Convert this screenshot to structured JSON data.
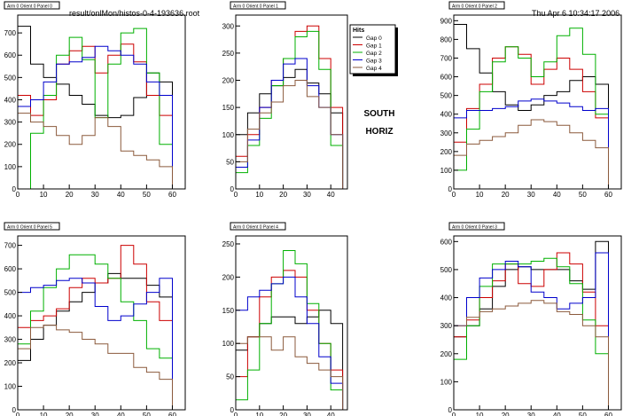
{
  "header": {
    "file": "result/onlMon/histos-0-4-193636.root",
    "datetime": "Thu Apr  6 10:34:17 2006"
  },
  "side_text": [
    "SOUTH",
    "HORIZ"
  ],
  "legend": {
    "title": "Hits",
    "entries": [
      "Gap 0",
      "Gap 1",
      "Gap 2",
      "Gap 3",
      "Gap 4"
    ]
  },
  "colors": {
    "Gap 0": "#000000",
    "Gap 1": "#cc0000",
    "Gap 2": "#00b000",
    "Gap 3": "#0000cc",
    "Gap 4": "#8b5a3c"
  },
  "chart_data": [
    {
      "type": "line",
      "title": "Arm 0 Orient 0 Panel 0",
      "xlim": [
        0,
        65
      ],
      "ylim": [
        0,
        780
      ],
      "xticks": [
        0,
        10,
        20,
        30,
        40,
        50,
        60
      ],
      "yticks": [
        0,
        100,
        200,
        300,
        400,
        500,
        600,
        700
      ],
      "x": [
        0,
        5,
        10,
        15,
        20,
        25,
        30,
        35,
        40,
        45,
        50,
        55,
        60
      ],
      "series": [
        {
          "name": "Gap 0",
          "values": [
            730,
            560,
            500,
            470,
            420,
            380,
            330,
            320,
            330,
            410,
            520,
            480,
            0
          ]
        },
        {
          "name": "Gap 1",
          "values": [
            420,
            330,
            400,
            560,
            620,
            640,
            520,
            600,
            650,
            570,
            420,
            330,
            0
          ]
        },
        {
          "name": "Gap 2",
          "values": [
            0,
            250,
            420,
            600,
            680,
            580,
            320,
            560,
            700,
            720,
            520,
            200,
            0
          ]
        },
        {
          "name": "Gap 3",
          "values": [
            370,
            400,
            480,
            560,
            570,
            590,
            640,
            620,
            600,
            560,
            480,
            420,
            0
          ]
        },
        {
          "name": "Gap 4",
          "values": [
            340,
            300,
            280,
            240,
            200,
            240,
            320,
            280,
            170,
            150,
            130,
            100,
            0
          ]
        }
      ]
    },
    {
      "type": "line",
      "title": "Arm 0 Orient 0 Panel 1",
      "xlim": [
        0,
        47
      ],
      "ylim": [
        0,
        320
      ],
      "xticks": [
        0,
        10,
        20,
        30,
        40
      ],
      "yticks": [
        0,
        50,
        100,
        150,
        200,
        250,
        300
      ],
      "x": [
        0,
        5,
        10,
        15,
        20,
        25,
        30,
        35,
        40,
        45
      ],
      "series": [
        {
          "name": "Gap 0",
          "values": [
            100,
            140,
            175,
            190,
            205,
            220,
            195,
            175,
            140,
            0
          ]
        },
        {
          "name": "Gap 1",
          "values": [
            60,
            100,
            150,
            200,
            240,
            290,
            300,
            240,
            150,
            0
          ]
        },
        {
          "name": "Gap 2",
          "values": [
            30,
            80,
            130,
            190,
            240,
            280,
            290,
            220,
            80,
            0
          ]
        },
        {
          "name": "Gap 3",
          "values": [
            40,
            90,
            150,
            200,
            230,
            240,
            190,
            150,
            100,
            0
          ]
        },
        {
          "name": "Gap 4",
          "values": [
            50,
            110,
            140,
            160,
            190,
            200,
            170,
            150,
            100,
            0
          ]
        }
      ]
    },
    {
      "type": "line",
      "title": "Arm 0 Orient 0 Panel 2",
      "xlim": [
        0,
        65
      ],
      "ylim": [
        0,
        930
      ],
      "xticks": [
        0,
        10,
        20,
        30,
        40,
        50,
        60
      ],
      "yticks": [
        0,
        100,
        200,
        300,
        400,
        500,
        600,
        700,
        800,
        900
      ],
      "x": [
        0,
        5,
        10,
        15,
        20,
        25,
        30,
        35,
        40,
        45,
        50,
        55,
        60
      ],
      "series": [
        {
          "name": "Gap 0",
          "values": [
            880,
            750,
            620,
            520,
            450,
            420,
            450,
            500,
            520,
            580,
            600,
            560,
            0
          ]
        },
        {
          "name": "Gap 1",
          "values": [
            250,
            430,
            560,
            700,
            760,
            720,
            560,
            640,
            700,
            640,
            520,
            380,
            0
          ]
        },
        {
          "name": "Gap 2",
          "values": [
            100,
            320,
            520,
            680,
            760,
            700,
            600,
            680,
            820,
            860,
            720,
            400,
            0
          ]
        },
        {
          "name": "Gap 3",
          "values": [
            380,
            420,
            420,
            430,
            440,
            470,
            480,
            470,
            460,
            440,
            420,
            430,
            0
          ]
        },
        {
          "name": "Gap 4",
          "values": [
            180,
            240,
            260,
            280,
            300,
            340,
            370,
            360,
            340,
            300,
            260,
            220,
            0
          ]
        }
      ]
    },
    {
      "type": "line",
      "title": "Arm 0 Orient 0 Panel 5",
      "xlim": [
        0,
        65
      ],
      "ylim": [
        0,
        740
      ],
      "xticks": [
        0,
        10,
        20,
        30,
        40,
        50,
        60
      ],
      "yticks": [
        0,
        100,
        200,
        300,
        400,
        500,
        600,
        700
      ],
      "x": [
        0,
        5,
        10,
        15,
        20,
        25,
        30,
        35,
        40,
        45,
        50,
        55,
        60
      ],
      "series": [
        {
          "name": "Gap 0",
          "values": [
            210,
            300,
            360,
            420,
            460,
            500,
            540,
            580,
            560,
            560,
            530,
            480,
            0
          ]
        },
        {
          "name": "Gap 1",
          "values": [
            350,
            380,
            400,
            430,
            520,
            560,
            540,
            560,
            700,
            620,
            460,
            380,
            0
          ]
        },
        {
          "name": "Gap 2",
          "values": [
            280,
            420,
            520,
            600,
            660,
            660,
            620,
            560,
            460,
            380,
            260,
            220,
            0
          ]
        },
        {
          "name": "Gap 3",
          "values": [
            500,
            520,
            530,
            550,
            560,
            540,
            440,
            380,
            400,
            450,
            500,
            560,
            0
          ]
        },
        {
          "name": "Gap 4",
          "values": [
            260,
            350,
            360,
            340,
            330,
            300,
            280,
            240,
            240,
            180,
            160,
            130,
            0
          ]
        }
      ]
    },
    {
      "type": "line",
      "title": "Arm 0 Orient 0 Panel 4",
      "xlim": [
        0,
        47
      ],
      "ylim": [
        0,
        262
      ],
      "xticks": [
        0,
        10,
        20,
        30,
        40
      ],
      "yticks": [
        0,
        50,
        100,
        150,
        200,
        250
      ],
      "x": [
        0,
        5,
        10,
        15,
        20,
        25,
        30,
        35,
        40,
        45
      ],
      "series": [
        {
          "name": "Gap 0",
          "values": [
            90,
            110,
            130,
            140,
            140,
            130,
            140,
            150,
            130,
            0
          ]
        },
        {
          "name": "Gap 1",
          "values": [
            50,
            110,
            170,
            200,
            210,
            200,
            150,
            100,
            60,
            0
          ]
        },
        {
          "name": "Gap 2",
          "values": [
            15,
            60,
            130,
            190,
            240,
            220,
            160,
            100,
            30,
            0
          ]
        },
        {
          "name": "Gap 3",
          "values": [
            150,
            170,
            180,
            190,
            200,
            170,
            130,
            80,
            40,
            0
          ]
        },
        {
          "name": "Gap 4",
          "values": [
            100,
            110,
            110,
            90,
            110,
            80,
            70,
            60,
            50,
            0
          ]
        }
      ]
    },
    {
      "type": "line",
      "title": "Arm 0 Orient 0 Panel 3",
      "xlim": [
        0,
        65
      ],
      "ylim": [
        0,
        620
      ],
      "xticks": [
        0,
        10,
        20,
        30,
        40,
        50,
        60
      ],
      "yticks": [
        0,
        100,
        200,
        300,
        400,
        500,
        600
      ],
      "x": [
        0,
        5,
        10,
        15,
        20,
        25,
        30,
        35,
        40,
        45,
        50,
        55,
        60
      ],
      "series": [
        {
          "name": "Gap 0",
          "values": [
            260,
            300,
            360,
            440,
            500,
            510,
            500,
            500,
            500,
            460,
            430,
            600,
            0
          ]
        },
        {
          "name": "Gap 1",
          "values": [
            260,
            320,
            400,
            460,
            520,
            450,
            440,
            500,
            560,
            520,
            420,
            300,
            0
          ]
        },
        {
          "name": "Gap 2",
          "values": [
            180,
            300,
            440,
            520,
            520,
            520,
            530,
            540,
            510,
            450,
            320,
            200,
            0
          ]
        },
        {
          "name": "Gap 3",
          "values": [
            300,
            400,
            470,
            500,
            530,
            510,
            420,
            400,
            360,
            380,
            400,
            560,
            0
          ]
        },
        {
          "name": "Gap 4",
          "values": [
            300,
            330,
            350,
            360,
            370,
            380,
            390,
            380,
            350,
            340,
            300,
            260,
            0
          ]
        }
      ]
    }
  ]
}
